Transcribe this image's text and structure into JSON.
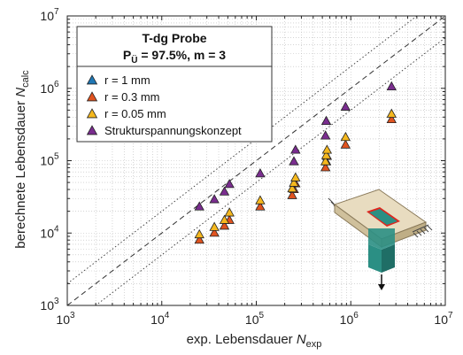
{
  "chart_data": {
    "type": "scatter",
    "title": "T-dg Probe",
    "subtitle": "P_Ü = 97.5%, m = 3",
    "subtitle_parts": {
      "p": "P",
      "sub": "Ü",
      "rest": " = 97.5%, m = 3"
    },
    "xlabel_parts": {
      "main": "exp. Lebensdauer ",
      "italic": "N",
      "sub": "exp"
    },
    "ylabel_parts": {
      "main": "berechnete Lebensdauer ",
      "italic": "N",
      "sub": "calc"
    },
    "xscale": "log",
    "yscale": "log",
    "xlim": [
      1000,
      10000000
    ],
    "ylim": [
      1000,
      10000000
    ],
    "x_ticks": [
      {
        "base": "10",
        "exp": "3",
        "value": 1000
      },
      {
        "base": "10",
        "exp": "4",
        "value": 10000
      },
      {
        "base": "10",
        "exp": "5",
        "value": 100000
      },
      {
        "base": "10",
        "exp": "6",
        "value": 1000000
      },
      {
        "base": "10",
        "exp": "7",
        "value": 10000000
      }
    ],
    "y_ticks": [
      {
        "base": "10",
        "exp": "3",
        "value": 1000
      },
      {
        "base": "10",
        "exp": "4",
        "value": 10000
      },
      {
        "base": "10",
        "exp": "5",
        "value": 100000
      },
      {
        "base": "10",
        "exp": "6",
        "value": 1000000
      },
      {
        "base": "10",
        "exp": "7",
        "value": 10000000
      }
    ],
    "grid": true,
    "legend_position": "top-left",
    "reference_lines": [
      {
        "style": "dashed",
        "factor": 1
      },
      {
        "style": "dotted",
        "factor": 2
      },
      {
        "style": "dotted",
        "factor": 0.5
      }
    ],
    "series": [
      {
        "name": "r = 1 mm",
        "color": "#1f77b4",
        "marker": "triangle",
        "points": []
      },
      {
        "name": "r = 0.3 mm",
        "color": "#e0531f",
        "marker": "triangle",
        "points": [
          [
            25000,
            8000
          ],
          [
            36000,
            10000
          ],
          [
            46000,
            12500
          ],
          [
            52000,
            15000
          ],
          [
            110000,
            23000
          ],
          [
            240000,
            33000
          ],
          [
            250000,
            40000
          ],
          [
            260000,
            48000
          ],
          [
            540000,
            80000
          ],
          [
            550000,
            97000
          ],
          [
            560000,
            115000
          ],
          [
            880000,
            165000
          ],
          [
            2700000,
            370000
          ]
        ]
      },
      {
        "name": "r = 0.05 mm",
        "color": "#f5b81e",
        "marker": "triangle",
        "points": [
          [
            25000,
            9500
          ],
          [
            36000,
            12000
          ],
          [
            46000,
            15000
          ],
          [
            52000,
            19000
          ],
          [
            110000,
            28000
          ],
          [
            240000,
            41000
          ],
          [
            250000,
            49000
          ],
          [
            260000,
            58000
          ],
          [
            540000,
            97000
          ],
          [
            550000,
            118000
          ],
          [
            560000,
            140000
          ],
          [
            880000,
            210000
          ],
          [
            2700000,
            440000
          ]
        ]
      },
      {
        "name": "Strukturspannungskonzept",
        "color": "#7a2d8f",
        "marker": "triangle",
        "points": [
          [
            25000,
            23000
          ],
          [
            36000,
            29000
          ],
          [
            46000,
            37000
          ],
          [
            52000,
            47000
          ],
          [
            110000,
            66000
          ],
          [
            250000,
            97000
          ],
          [
            260000,
            140000
          ],
          [
            540000,
            220000
          ],
          [
            550000,
            350000
          ],
          [
            880000,
            550000
          ],
          [
            2700000,
            1050000
          ]
        ]
      }
    ]
  },
  "illustration": {
    "name": "specimen-3d-illustration",
    "plate_color": "#e8dcc0",
    "stem_color": "#2b8f84",
    "weld_color": "#e0251d"
  }
}
